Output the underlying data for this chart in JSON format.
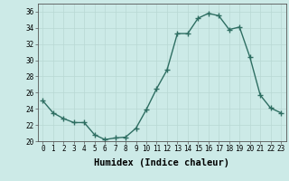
{
  "x": [
    0,
    1,
    2,
    3,
    4,
    5,
    6,
    7,
    8,
    9,
    10,
    11,
    12,
    13,
    14,
    15,
    16,
    17,
    18,
    19,
    20,
    21,
    22,
    23
  ],
  "y": [
    25.0,
    23.5,
    22.8,
    22.3,
    22.3,
    20.8,
    20.2,
    20.4,
    20.5,
    21.6,
    23.9,
    26.5,
    28.8,
    33.3,
    33.3,
    35.2,
    35.8,
    35.5,
    33.8,
    34.1,
    30.4,
    25.7,
    24.1,
    23.5
  ],
  "line_color": "#2e6e62",
  "marker": "+",
  "marker_size": 4,
  "bg_color": "#cceae7",
  "grid_color": "#b8d8d4",
  "xlabel": "Humidex (Indice chaleur)",
  "xlim": [
    -0.5,
    23.5
  ],
  "ylim": [
    20,
    37
  ],
  "yticks": [
    20,
    22,
    24,
    26,
    28,
    30,
    32,
    34,
    36
  ],
  "xticks": [
    0,
    1,
    2,
    3,
    4,
    5,
    6,
    7,
    8,
    9,
    10,
    11,
    12,
    13,
    14,
    15,
    16,
    17,
    18,
    19,
    20,
    21,
    22,
    23
  ],
  "tick_fontsize": 5.5,
  "xlabel_fontsize": 7.5,
  "line_width": 1.0
}
